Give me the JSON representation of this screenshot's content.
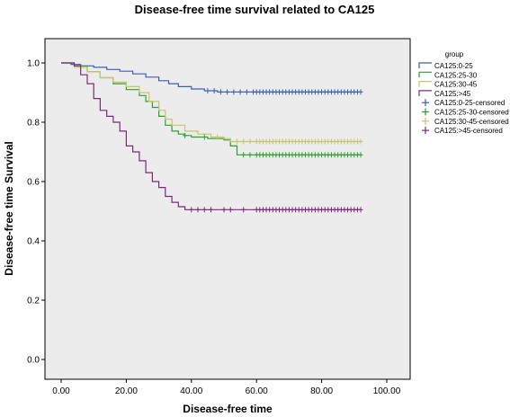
{
  "chart_data": {
    "type": "line",
    "title": "Disease-free time survival related to CA125",
    "xlabel": "Disease-free time",
    "ylabel": "Disease-free time Survival",
    "xlim": [
      0,
      100
    ],
    "ylim": [
      0,
      1.0
    ],
    "x_ticks": [
      0,
      20,
      40,
      60,
      80,
      100
    ],
    "x_tick_labels": [
      "0.00",
      "20.00",
      "40.00",
      "60.00",
      "80.00",
      "100.00"
    ],
    "y_ticks": [
      0,
      0.2,
      0.4,
      0.6,
      0.8,
      1.0
    ],
    "y_tick_labels": [
      "0.0",
      "0.2",
      "0.4",
      "0.6",
      "0.8",
      "1.0"
    ],
    "grid": false,
    "legend_title": "group",
    "legend_position": "right",
    "series": [
      {
        "name": "CA125:0-25",
        "color": "#3a5fb5",
        "censored_label": "CA125:0-25-censored",
        "points": [
          [
            0,
            1.0
          ],
          [
            3,
            0.995
          ],
          [
            6,
            0.99
          ],
          [
            10,
            0.985
          ],
          [
            14,
            0.978
          ],
          [
            18,
            0.972
          ],
          [
            22,
            0.963
          ],
          [
            26,
            0.952
          ],
          [
            30,
            0.94
          ],
          [
            33,
            0.93
          ],
          [
            36,
            0.92
          ],
          [
            40,
            0.912
          ],
          [
            44,
            0.906
          ],
          [
            48,
            0.902
          ],
          [
            92,
            0.902
          ]
        ],
        "censored_x": [
          45,
          47,
          49,
          51,
          53,
          55,
          57,
          59,
          60,
          61,
          62,
          63,
          64,
          65,
          66,
          67,
          68,
          69,
          70,
          71,
          72,
          73,
          74,
          75,
          76,
          77,
          78,
          79,
          80,
          81,
          82,
          83,
          84,
          85,
          86,
          87,
          88,
          89,
          90,
          91,
          92
        ]
      },
      {
        "name": "CA125:25-30",
        "color": "#2ca02c",
        "censored_label": "CA125:25-30-censored",
        "points": [
          [
            0,
            1.0
          ],
          [
            4,
            0.99
          ],
          [
            8,
            0.97
          ],
          [
            12,
            0.95
          ],
          [
            16,
            0.93
          ],
          [
            20,
            0.91
          ],
          [
            24,
            0.89
          ],
          [
            26,
            0.87
          ],
          [
            28,
            0.85
          ],
          [
            30,
            0.82
          ],
          [
            32,
            0.79
          ],
          [
            34,
            0.77
          ],
          [
            36,
            0.76
          ],
          [
            38,
            0.755
          ],
          [
            40,
            0.75
          ],
          [
            45,
            0.745
          ],
          [
            50,
            0.74
          ],
          [
            52,
            0.72
          ],
          [
            54,
            0.69
          ],
          [
            92,
            0.69
          ]
        ],
        "censored_x": [
          38,
          44,
          56,
          58,
          60,
          61,
          62,
          63,
          64,
          65,
          66,
          67,
          68,
          69,
          70,
          71,
          72,
          73,
          74,
          75,
          76,
          77,
          78,
          79,
          80,
          81,
          82,
          83,
          84,
          85,
          86,
          87,
          88,
          89,
          90,
          91,
          92
        ]
      },
      {
        "name": "CA125:30-45",
        "color": "#c9c36a",
        "censored_label": "CA125:30-45-censored",
        "points": [
          [
            0,
            1.0
          ],
          [
            4,
            0.985
          ],
          [
            8,
            0.97
          ],
          [
            12,
            0.95
          ],
          [
            16,
            0.935
          ],
          [
            20,
            0.92
          ],
          [
            24,
            0.9
          ],
          [
            27,
            0.87
          ],
          [
            30,
            0.84
          ],
          [
            32,
            0.81
          ],
          [
            34,
            0.79
          ],
          [
            38,
            0.77
          ],
          [
            42,
            0.76
          ],
          [
            46,
            0.75
          ],
          [
            50,
            0.745
          ],
          [
            52,
            0.735
          ],
          [
            92,
            0.735
          ]
        ],
        "censored_x": [
          48,
          54,
          56,
          58,
          60,
          61,
          62,
          63,
          64,
          65,
          66,
          67,
          68,
          69,
          70,
          71,
          72,
          73,
          74,
          75,
          76,
          77,
          78,
          79,
          80,
          81,
          82,
          83,
          84,
          85,
          86,
          87,
          88,
          89,
          90,
          91,
          92
        ]
      },
      {
        "name": "CA125:>45",
        "color": "#7b2a7b",
        "censored_label": "CA125:>45-censored",
        "points": [
          [
            0,
            1.0
          ],
          [
            4,
            0.99
          ],
          [
            6,
            0.96
          ],
          [
            8,
            0.93
          ],
          [
            10,
            0.88
          ],
          [
            12,
            0.84
          ],
          [
            14,
            0.82
          ],
          [
            16,
            0.8
          ],
          [
            18,
            0.77
          ],
          [
            20,
            0.72
          ],
          [
            22,
            0.7
          ],
          [
            24,
            0.67
          ],
          [
            26,
            0.63
          ],
          [
            28,
            0.6
          ],
          [
            30,
            0.58
          ],
          [
            32,
            0.55
          ],
          [
            34,
            0.53
          ],
          [
            36,
            0.515
          ],
          [
            38,
            0.505
          ],
          [
            92,
            0.505
          ]
        ],
        "censored_x": [
          40,
          42,
          44,
          46,
          50,
          52,
          56,
          60,
          61,
          62,
          63,
          64,
          65,
          66,
          67,
          68,
          69,
          70,
          71,
          72,
          73,
          74,
          75,
          76,
          77,
          78,
          79,
          80,
          81,
          82,
          83,
          84,
          85,
          86,
          87,
          88,
          89,
          90,
          91,
          92
        ]
      }
    ]
  }
}
